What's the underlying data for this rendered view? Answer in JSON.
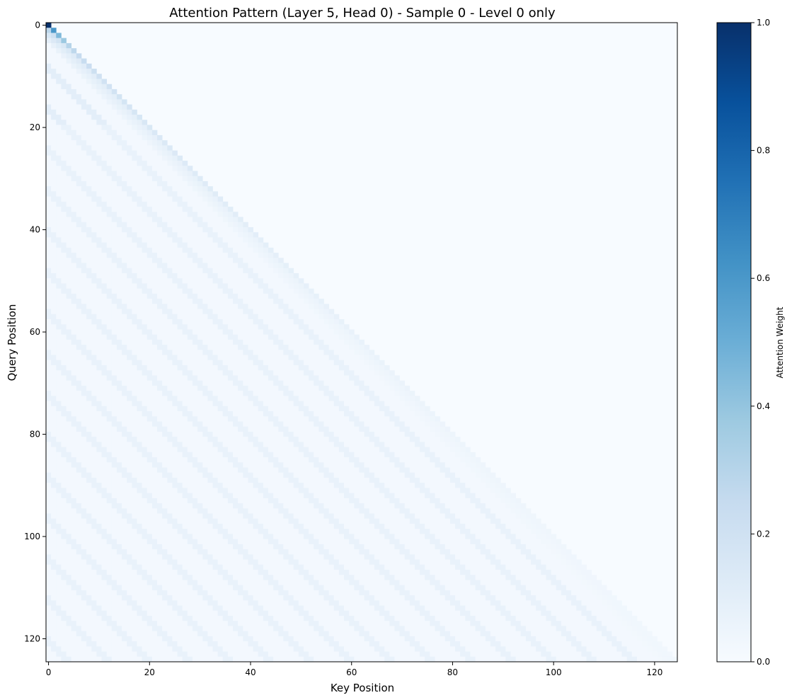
{
  "chart_data": {
    "type": "heatmap",
    "title": "Attention Pattern (Layer 5, Head 0) - Sample 0 - Level 0 only",
    "xlabel": "Key Position",
    "ylabel": "Query Position",
    "colorbar_label": "Attention Weight",
    "colormap": "Blues",
    "colormap_stops": [
      "#f7fbff",
      "#deebf7",
      "#c6dbef",
      "#9ecae1",
      "#6baed6",
      "#4292c6",
      "#2171b5",
      "#08519c",
      "#08306b"
    ],
    "matrix_size": 125,
    "mask": "causal (lower-triangular; keys after the query position are 0)",
    "x_ticks": [
      0,
      20,
      40,
      60,
      80,
      100,
      120
    ],
    "y_ticks": [
      0,
      20,
      40,
      60,
      80,
      100,
      120
    ],
    "colorbar_ticks": [
      "0.0",
      "0.2",
      "0.4",
      "0.6",
      "0.8",
      "1.0"
    ],
    "value_range": [
      0.0,
      1.0
    ],
    "diagonal_values": [
      {
        "query": 0,
        "key": 0,
        "value": 1.0
      },
      {
        "query": 1,
        "key": 1,
        "value": 0.6
      },
      {
        "query": 2,
        "key": 2,
        "value": 0.45
      },
      {
        "query": 3,
        "key": 3,
        "value": 0.38
      },
      {
        "query": 4,
        "key": 4,
        "value": 0.3
      },
      {
        "query": 6,
        "key": 6,
        "value": 0.25
      },
      {
        "query": 10,
        "key": 10,
        "value": 0.2
      },
      {
        "query": 20,
        "key": 20,
        "value": 0.15
      },
      {
        "query": 40,
        "key": 40,
        "value": 0.1
      },
      {
        "query": 60,
        "key": 60,
        "value": 0.07
      },
      {
        "query": 80,
        "key": 80,
        "value": 0.05
      },
      {
        "query": 100,
        "key": 100,
        "value": 0.04
      },
      {
        "query": 124,
        "key": 124,
        "value": 0.03
      }
    ],
    "off_diagonal_background": 0.02,
    "periodic_stripes": {
      "offset_period": 8,
      "value": 0.07
    }
  }
}
